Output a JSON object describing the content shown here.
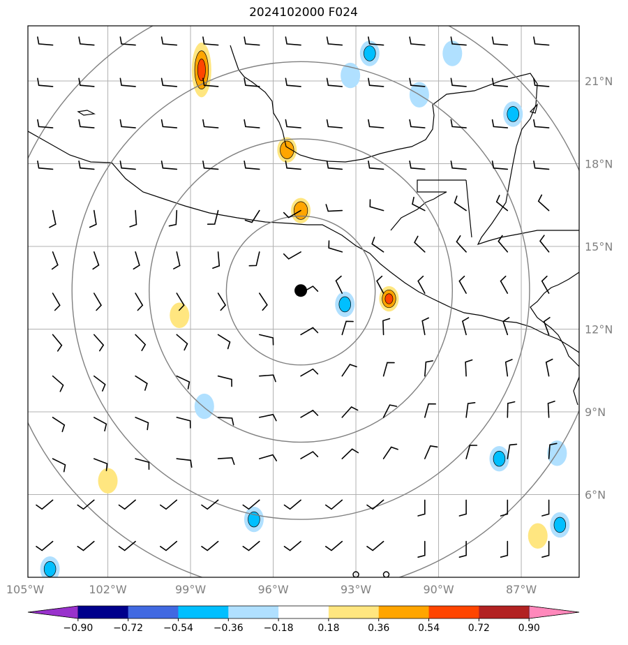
{
  "title": "2024102000 F024",
  "map": {
    "lon_range": [
      -104.9,
      -84.9
    ],
    "lat_range": [
      3.0,
      23.0
    ],
    "lon_ticks": [
      "105°W",
      "102°W",
      "99°W",
      "96°W",
      "93°W",
      "90°W",
      "87°W"
    ],
    "lat_ticks": [
      "6°N",
      "9°N",
      "12°N",
      "15°N",
      "18°N",
      "21°N"
    ],
    "grid_color": "#b0b0b0",
    "coastline_color": "#000000",
    "range_ring_color": "#808080",
    "storm_center": {
      "lon": -95.0,
      "lat": 13.4
    },
    "range_rings_deg": [
      2.7,
      5.5,
      8.3,
      11.0
    ]
  },
  "colorbar": {
    "tick_labels": [
      "−0.90",
      "−0.72",
      "−0.54",
      "−0.36",
      "−0.18",
      "0.18",
      "0.36",
      "0.54",
      "0.72",
      "0.90"
    ],
    "colors": [
      "#9932cc",
      "#00008b",
      "#4169e1",
      "#00bfff",
      "#b0e0ff",
      "#ffffff",
      "#ffe680",
      "#ffa500",
      "#ff4500",
      "#b22222",
      "#ff88bb"
    ],
    "extend": "both"
  },
  "chart_data": {
    "type": "heatmap",
    "title": "2024102000 F024",
    "xlabel": "",
    "ylabel": "",
    "xlim": [
      -104.9,
      -84.9
    ],
    "ylim": [
      3.0,
      23.0
    ],
    "features_positive": [
      {
        "lon": -98.6,
        "lat": 21.4,
        "level": 0.54
      },
      {
        "lon": -95.5,
        "lat": 18.5,
        "level": 0.36
      },
      {
        "lon": -95.0,
        "lat": 16.3,
        "level": 0.36
      },
      {
        "lon": -91.8,
        "lat": 13.1,
        "level": 0.54
      },
      {
        "lon": -99.4,
        "lat": 12.5,
        "level": 0.18
      },
      {
        "lon": -102.0,
        "lat": 6.5,
        "level": 0.18
      },
      {
        "lon": -86.4,
        "lat": 4.5,
        "level": 0.18
      }
    ],
    "features_negative": [
      {
        "lon": -92.5,
        "lat": 22.0,
        "level": -0.36
      },
      {
        "lon": -89.5,
        "lat": 22.0,
        "level": -0.18
      },
      {
        "lon": -93.2,
        "lat": 21.2,
        "level": -0.18
      },
      {
        "lon": -90.7,
        "lat": 20.5,
        "level": -0.18
      },
      {
        "lon": -87.3,
        "lat": 19.8,
        "level": -0.36
      },
      {
        "lon": -93.4,
        "lat": 12.9,
        "level": -0.36
      },
      {
        "lon": -98.5,
        "lat": 9.2,
        "level": -0.18
      },
      {
        "lon": -87.8,
        "lat": 7.3,
        "level": -0.36
      },
      {
        "lon": -85.7,
        "lat": 7.5,
        "level": -0.18
      },
      {
        "lon": -85.6,
        "lat": 4.9,
        "level": -0.36
      },
      {
        "lon": -96.7,
        "lat": 5.1,
        "level": -0.36
      },
      {
        "lon": -104.1,
        "lat": 3.3,
        "level": -0.36
      }
    ]
  }
}
